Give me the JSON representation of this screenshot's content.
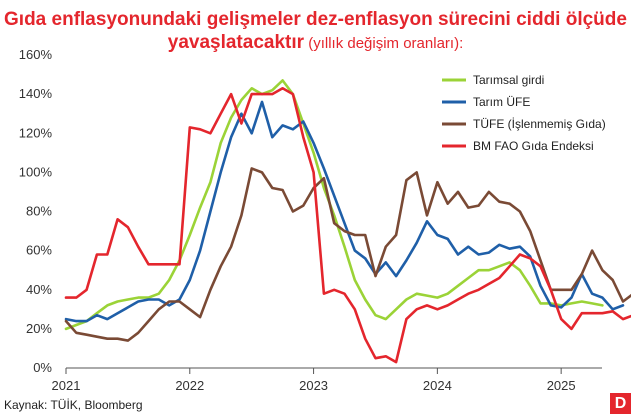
{
  "header": {
    "title_line1": "Gıda enflasyonundaki gelişmeler dez-enflasyon sürecini ciddi ölçüde",
    "title_line2": "yavaşlatacaktır",
    "title_sub": " (yıllık değişim oranları):"
  },
  "footer": {
    "source": "Kaynak: TÜİK, Bloomberg",
    "logo_letter": "D"
  },
  "chart_data": {
    "type": "line",
    "title": "Gıda enflasyonundaki gelişmeler dez-enflasyon sürecini ciddi ölçüde yavaşlatacaktır (yıllık değişim oranları):",
    "xlabel": "",
    "ylabel": "",
    "x_ticks": [
      "2021",
      "2022",
      "2023",
      "2024",
      "2025"
    ],
    "x_range": [
      2021.0,
      2025.33
    ],
    "y_ticks": [
      "0%",
      "20%",
      "40%",
      "60%",
      "80%",
      "100%",
      "120%",
      "140%",
      "160%"
    ],
    "ylim": [
      0,
      160
    ],
    "grid": false,
    "legend_position": "top-right",
    "series": [
      {
        "name": "Tarımsal girdi",
        "color": "#9bd337",
        "values": [
          20,
          22,
          24,
          28,
          32,
          34,
          35,
          36,
          36,
          38,
          45,
          55,
          68,
          82,
          95,
          115,
          128,
          137,
          143,
          140,
          142,
          147,
          140,
          125,
          110,
          92,
          78,
          62,
          45,
          35,
          27,
          25,
          30,
          35,
          38,
          37,
          36,
          38,
          42,
          46,
          50,
          50,
          52,
          54,
          50,
          42,
          33,
          33,
          32,
          33,
          34,
          33,
          32
        ]
      },
      {
        "name": "Tarım ÜFE",
        "color": "#1f5fa8",
        "values": [
          25,
          24,
          24,
          27,
          25,
          28,
          31,
          34,
          35,
          35,
          32,
          35,
          45,
          60,
          80,
          100,
          118,
          130,
          120,
          136,
          118,
          124,
          122,
          126,
          115,
          102,
          88,
          74,
          60,
          56,
          48,
          54,
          47,
          55,
          64,
          75,
          68,
          66,
          58,
          62,
          58,
          59,
          63,
          61,
          62,
          57,
          42,
          32,
          31,
          36,
          48,
          38,
          36,
          30,
          32
        ]
      },
      {
        "name": "TÜFE (İşlenmemiş Gıda)",
        "color": "#7a4a35",
        "values": [
          24,
          18,
          17,
          16,
          15,
          15,
          14,
          18,
          24,
          30,
          34,
          34,
          30,
          26,
          40,
          52,
          62,
          78,
          102,
          100,
          92,
          91,
          80,
          83,
          92,
          97,
          74,
          70,
          68,
          68,
          47,
          62,
          68,
          96,
          100,
          78,
          95,
          84,
          90,
          82,
          83,
          90,
          85,
          84,
          80,
          70,
          55,
          40,
          40,
          40,
          48,
          60,
          50,
          45,
          34,
          38
        ]
      },
      {
        "name": "BM FAO Gıda Endeksi",
        "color": "#e4262d",
        "values": [
          36,
          36,
          40,
          58,
          58,
          76,
          72,
          62,
          53,
          53,
          53,
          53,
          123,
          122,
          120,
          130,
          140,
          125,
          140,
          140,
          140,
          143,
          140,
          118,
          100,
          38,
          40,
          38,
          30,
          15,
          5,
          6,
          3,
          25,
          30,
          32,
          30,
          32,
          35,
          38,
          40,
          43,
          46,
          52,
          58,
          56,
          52,
          40,
          25,
          20,
          28,
          28,
          28,
          29,
          25,
          27
        ]
      }
    ]
  }
}
